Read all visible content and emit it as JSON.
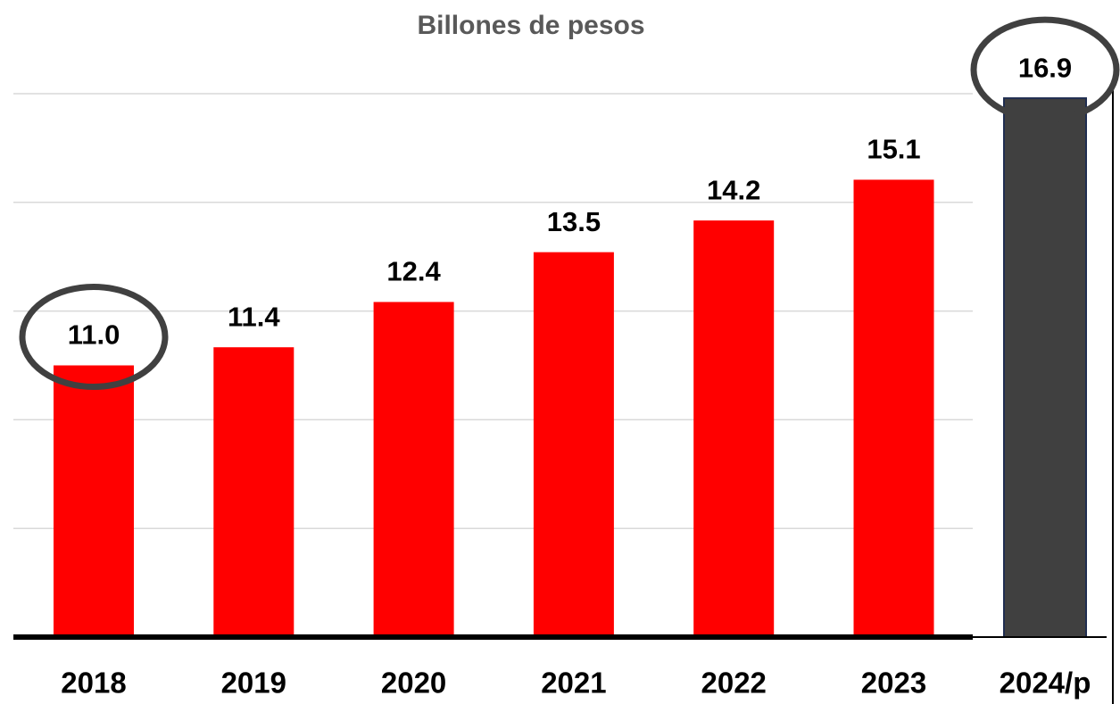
{
  "chart_data": {
    "type": "bar",
    "title": "Billones de pesos",
    "categories": [
      "2018",
      "2019",
      "2020",
      "2021",
      "2022",
      "2023",
      "2024/p"
    ],
    "values": [
      11.0,
      11.4,
      12.4,
      13.5,
      14.2,
      15.1,
      16.9
    ],
    "value_labels": [
      "11.0",
      "11.4",
      "12.4",
      "13.5",
      "14.2",
      "15.1",
      "16.9"
    ],
    "colors": [
      "#ff0000",
      "#ff0000",
      "#ff0000",
      "#ff0000",
      "#ff0000",
      "#ff0000",
      "#404040"
    ],
    "ylim": [
      5,
      17
    ],
    "yticks": [
      5,
      7.4,
      9.8,
      12.2,
      14.6,
      17
    ],
    "grid": true
  }
}
